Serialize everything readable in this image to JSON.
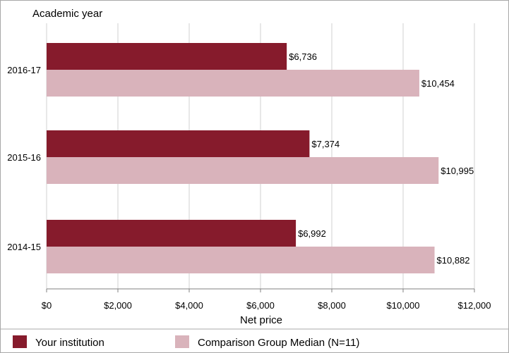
{
  "chart_data": {
    "type": "bar",
    "orientation": "horizontal",
    "title": "",
    "ylabel": "Academic year",
    "xlabel": "Net price",
    "categories": [
      "2016-17",
      "2015-16",
      "2014-15"
    ],
    "series": [
      {
        "name": "Your institution",
        "values": [
          6736,
          7374,
          6992
        ],
        "labels": [
          "$6,736",
          "$7,374",
          "$6,992"
        ],
        "color": "#861b2c"
      },
      {
        "name": "Comparison Group Median (N=11)",
        "values": [
          10454,
          10995,
          10882
        ],
        "labels": [
          "$10,454",
          "$10,995",
          "$10,882"
        ],
        "color": "#d9b3bb"
      }
    ],
    "xlim": [
      0,
      12000
    ],
    "xticks": [
      0,
      2000,
      4000,
      6000,
      8000,
      10000,
      12000
    ],
    "xtick_labels": [
      "$0",
      "$2,000",
      "$4,000",
      "$6,000",
      "$8,000",
      "$10,000",
      "$12,000"
    ],
    "grid": "vertical",
    "legend_placement": "bottom"
  }
}
